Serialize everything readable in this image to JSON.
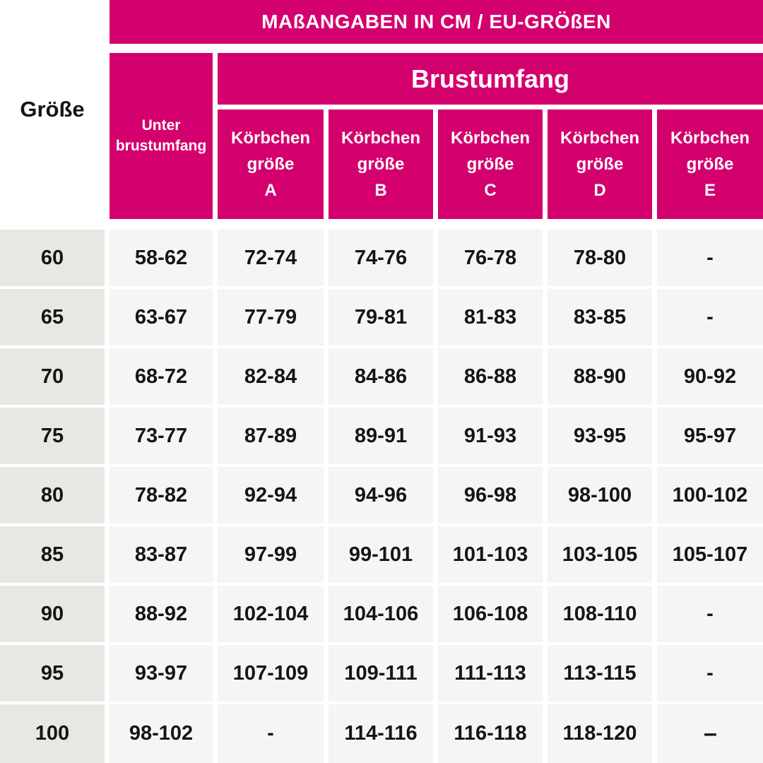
{
  "title": "MAßANGABEN IN CM / EU-GRÖßEN",
  "corner_label": "Größe",
  "group_header": "Brustumfang",
  "underbust_header": {
    "line1": "Unter",
    "line2": "brustumfang"
  },
  "cup_columns": [
    {
      "line1": "Körbchen",
      "line2": "größe",
      "letter": "A"
    },
    {
      "line1": "Körbchen",
      "line2": "größe",
      "letter": "B"
    },
    {
      "line1": "Körbchen",
      "line2": "größe",
      "letter": "C"
    },
    {
      "line1": "Körbchen",
      "line2": "größe",
      "letter": "D"
    },
    {
      "line1": "Körbchen",
      "line2": "größe",
      "letter": "E"
    }
  ],
  "rows": [
    {
      "size": "60",
      "underbust": "58-62",
      "cups": [
        "72-74",
        "74-76",
        "76-78",
        "78-80",
        "-"
      ]
    },
    {
      "size": "65",
      "underbust": "63-67",
      "cups": [
        "77-79",
        "79-81",
        "81-83",
        "83-85",
        "-"
      ]
    },
    {
      "size": "70",
      "underbust": "68-72",
      "cups": [
        "82-84",
        "84-86",
        "86-88",
        "88-90",
        "90-92"
      ]
    },
    {
      "size": "75",
      "underbust": "73-77",
      "cups": [
        "87-89",
        "89-91",
        "91-93",
        "93-95",
        "95-97"
      ]
    },
    {
      "size": "80",
      "underbust": "78-82",
      "cups": [
        "92-94",
        "94-96",
        "96-98",
        "98-100",
        "100-102"
      ]
    },
    {
      "size": "85",
      "underbust": "83-87",
      "cups": [
        "97-99",
        "99-101",
        "101-103",
        "103-105",
        "105-107"
      ]
    },
    {
      "size": "90",
      "underbust": "88-92",
      "cups": [
        "102-104",
        "104-106",
        "106-108",
        "108-110",
        "-"
      ]
    },
    {
      "size": "95",
      "underbust": "93-97",
      "cups": [
        "107-109",
        "109-111",
        "111-113",
        "113-115",
        "-"
      ]
    },
    {
      "size": "100",
      "underbust": "98-102",
      "cups": [
        "-",
        "114-116",
        "116-118",
        "118-120",
        "–"
      ]
    }
  ],
  "colors": {
    "pink": "#d4006e",
    "header_text": "#ffffff",
    "body_text": "#161514",
    "size_column_bg": "#e9e7e3",
    "value_cell_bg": "#f6f5f3",
    "page_bg": "#ffffff"
  },
  "chart_data": {
    "type": "table",
    "title": "MAßANGABEN IN CM / EU-GRÖßEN",
    "column_group_header": "Brustumfang",
    "columns": [
      "Größe",
      "Unter brustumfang",
      "Körbchengröße A",
      "Körbchengröße B",
      "Körbchengröße C",
      "Körbchengröße D",
      "Körbchengröße E"
    ],
    "rows": [
      [
        "60",
        "58-62",
        "72-74",
        "74-76",
        "76-78",
        "78-80",
        "-"
      ],
      [
        "65",
        "63-67",
        "77-79",
        "79-81",
        "81-83",
        "83-85",
        "-"
      ],
      [
        "70",
        "68-72",
        "82-84",
        "84-86",
        "86-88",
        "88-90",
        "90-92"
      ],
      [
        "75",
        "73-77",
        "87-89",
        "89-91",
        "91-93",
        "93-95",
        "95-97"
      ],
      [
        "80",
        "78-82",
        "92-94",
        "94-96",
        "96-98",
        "98-100",
        "100-102"
      ],
      [
        "85",
        "83-87",
        "97-99",
        "99-101",
        "101-103",
        "103-105",
        "105-107"
      ],
      [
        "90",
        "88-92",
        "102-104",
        "104-106",
        "106-108",
        "108-110",
        "-"
      ],
      [
        "95",
        "93-97",
        "107-109",
        "109-111",
        "111-113",
        "113-115",
        "-"
      ],
      [
        "100",
        "98-102",
        "-",
        "114-116",
        "116-118",
        "118-120",
        "–"
      ]
    ]
  }
}
